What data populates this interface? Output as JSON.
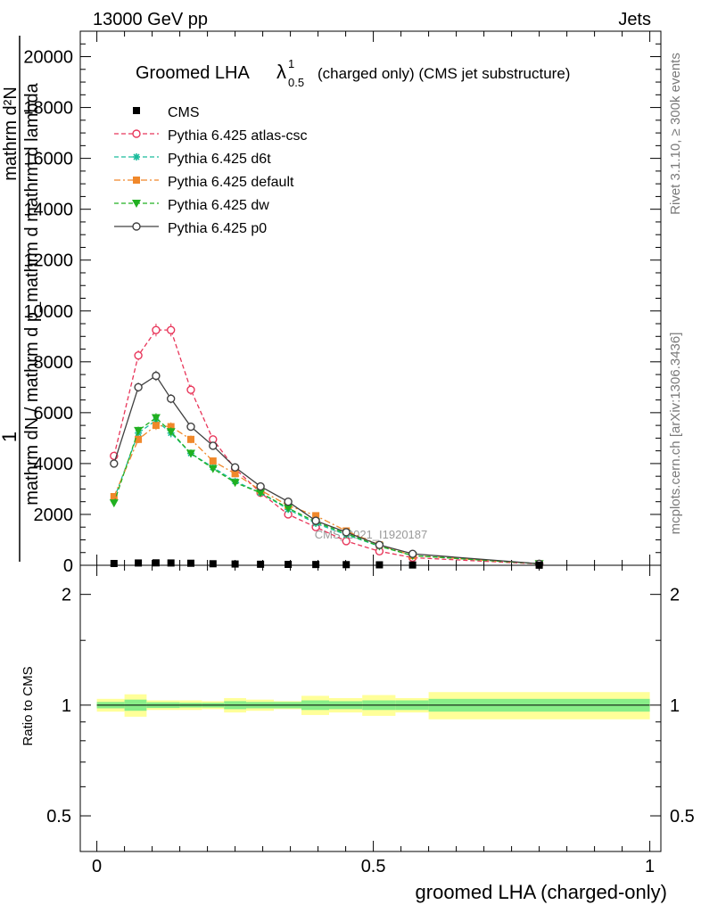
{
  "header": {
    "left": "13000 GeV pp",
    "right": "Jets"
  },
  "side_text": {
    "rivet": "Rivet 3.1.10, ≥ 300k events",
    "mcplots": "mcplots.cern.ch [arXiv:1306.3436]"
  },
  "watermark": "CMS_2021_I1920187",
  "title": {
    "main": "Groomed LHA",
    "lambda": "λ",
    "sup": "1",
    "sub": "0.5",
    "tail": "(charged only) (CMS jet substructure)"
  },
  "ylabel_top": {
    "numerator": "1",
    "line1": "mathrm dN / mathrm d p_mathrm d mathrm d lambda",
    "line2": "mathrm d²N"
  },
  "ratio_ylabel": "Ratio to CMS",
  "xlabel": "groomed LHA (charged-only)",
  "colors": {
    "atlas_csc": "#e8365a",
    "d6t": "#1abc9c",
    "default": "#f0882a",
    "dw": "#20b020",
    "p0": "#404040",
    "band_inner": "#88ee88",
    "band_outer": "#ffff99"
  },
  "chart_data": [
    {
      "type": "line",
      "panel": "main",
      "xlim": [
        -0.03,
        1.02
      ],
      "ylim": [
        0,
        21000
      ],
      "yticks": [
        0,
        2000,
        4000,
        6000,
        8000,
        10000,
        12000,
        14000,
        16000,
        18000,
        20000
      ],
      "ytick_labels": [
        "0",
        "2000",
        "4000",
        "6000",
        "8000",
        "10000",
        "12000",
        "14000",
        "16000",
        "18000",
        "20000"
      ],
      "bins": [
        [
          0.0,
          0.05
        ],
        [
          0.05,
          0.09
        ],
        [
          0.09,
          0.12
        ],
        [
          0.12,
          0.15
        ],
        [
          0.15,
          0.19
        ],
        [
          0.19,
          0.23
        ],
        [
          0.23,
          0.27
        ],
        [
          0.27,
          0.32
        ],
        [
          0.32,
          0.37
        ],
        [
          0.37,
          0.42
        ],
        [
          0.42,
          0.48
        ],
        [
          0.48,
          0.54
        ],
        [
          0.54,
          0.6
        ],
        [
          0.6,
          1.0
        ]
      ],
      "legend_position": "top-left",
      "cms": {
        "name": "CMS",
        "x": [
          0.031,
          0.075,
          0.107,
          0.134,
          0.17,
          0.21,
          0.25,
          0.296,
          0.346,
          0.396,
          0.451,
          0.511,
          0.571,
          0.8
        ],
        "y": [
          70,
          90,
          95,
          90,
          80,
          60,
          50,
          40,
          35,
          30,
          25,
          18,
          12,
          4
        ]
      },
      "series": [
        {
          "name": "Pythia 6.425 atlas-csc",
          "color_key": "atlas_csc",
          "marker": "open-circle",
          "dash": "dashed",
          "x": [
            0.031,
            0.075,
            0.107,
            0.134,
            0.17,
            0.21,
            0.25,
            0.296,
            0.346,
            0.396,
            0.451,
            0.511,
            0.571,
            0.8
          ],
          "y": [
            4300,
            8250,
            9250,
            9250,
            6900,
            4950,
            3800,
            2850,
            2000,
            1500,
            950,
            550,
            300,
            50
          ],
          "err": [
            120,
            200,
            250,
            250,
            200,
            150,
            120,
            100,
            80,
            70,
            60,
            50,
            40,
            10
          ]
        },
        {
          "name": "Pythia 6.425 d6t",
          "color_key": "d6t",
          "marker": "star",
          "dash": "dashed",
          "x": [
            0.031,
            0.075,
            0.107,
            0.134,
            0.17,
            0.21,
            0.25,
            0.296,
            0.346,
            0.396,
            0.451,
            0.511,
            0.571,
            0.8
          ],
          "y": [
            2600,
            5200,
            5700,
            5200,
            4400,
            3850,
            3300,
            2850,
            2200,
            1650,
            1200,
            750,
            380,
            60
          ],
          "err": [
            100,
            150,
            180,
            170,
            150,
            130,
            120,
            100,
            80,
            70,
            60,
            50,
            40,
            10
          ]
        },
        {
          "name": "Pythia 6.425 default",
          "color_key": "default",
          "marker": "filled-square",
          "dash": "dashdot",
          "x": [
            0.031,
            0.075,
            0.107,
            0.134,
            0.17,
            0.21,
            0.25,
            0.296,
            0.346,
            0.396,
            0.451,
            0.511,
            0.571,
            0.8
          ],
          "y": [
            2700,
            4950,
            5500,
            5450,
            4950,
            4100,
            3600,
            2950,
            2350,
            1950,
            1350,
            800,
            380,
            60
          ],
          "err": [
            100,
            150,
            180,
            170,
            150,
            130,
            120,
            100,
            80,
            70,
            60,
            50,
            40,
            10
          ]
        },
        {
          "name": "Pythia 6.425 dw",
          "color_key": "dw",
          "marker": "filled-triangle-down",
          "dash": "dashed",
          "x": [
            0.031,
            0.075,
            0.107,
            0.134,
            0.17,
            0.21,
            0.25,
            0.296,
            0.346,
            0.396,
            0.451,
            0.511,
            0.571,
            0.8
          ],
          "y": [
            2450,
            5300,
            5800,
            5250,
            4400,
            3800,
            3250,
            2850,
            2250,
            1700,
            1250,
            750,
            380,
            60
          ],
          "err": [
            100,
            150,
            180,
            170,
            150,
            130,
            120,
            100,
            80,
            70,
            60,
            50,
            40,
            10
          ]
        },
        {
          "name": "Pythia 6.425 p0",
          "color_key": "p0",
          "marker": "open-circle",
          "dash": "solid",
          "x": [
            0.031,
            0.075,
            0.107,
            0.134,
            0.17,
            0.21,
            0.25,
            0.296,
            0.346,
            0.396,
            0.451,
            0.511,
            0.571,
            0.8
          ],
          "y": [
            4000,
            7000,
            7450,
            6550,
            5450,
            4700,
            3850,
            3100,
            2500,
            1750,
            1300,
            800,
            450,
            60
          ],
          "err": [
            110,
            180,
            200,
            180,
            160,
            140,
            120,
            100,
            80,
            70,
            60,
            50,
            40,
            10
          ]
        }
      ]
    },
    {
      "type": "area",
      "panel": "ratio",
      "ylabel": "Ratio to CMS",
      "xlabel": "groomed LHA (charged-only)",
      "scale": "log",
      "ylim": [
        0.4,
        2.4
      ],
      "yticks": [
        0.5,
        1,
        2
      ],
      "ytick_labels": [
        "0.5",
        "1",
        "2"
      ],
      "xlim": [
        -0.03,
        1.02
      ],
      "xticks": [
        0,
        0.5,
        1
      ],
      "xtick_labels": [
        "0",
        "0.5",
        "1"
      ],
      "bins": [
        [
          0.0,
          0.05
        ],
        [
          0.05,
          0.09
        ],
        [
          0.09,
          0.12
        ],
        [
          0.12,
          0.15
        ],
        [
          0.15,
          0.19
        ],
        [
          0.19,
          0.23
        ],
        [
          0.23,
          0.27
        ],
        [
          0.27,
          0.32
        ],
        [
          0.32,
          0.37
        ],
        [
          0.37,
          0.42
        ],
        [
          0.42,
          0.48
        ],
        [
          0.48,
          0.54
        ],
        [
          0.54,
          0.6
        ],
        [
          0.6,
          1.0
        ]
      ],
      "stat_band": [
        0.02,
        0.035,
        0.018,
        0.018,
        0.015,
        0.015,
        0.025,
        0.02,
        0.02,
        0.03,
        0.025,
        0.03,
        0.03,
        0.04
      ],
      "total_band": [
        0.04,
        0.07,
        0.03,
        0.03,
        0.03,
        0.025,
        0.045,
        0.035,
        0.025,
        0.06,
        0.045,
        0.065,
        0.045,
        0.085
      ]
    }
  ]
}
